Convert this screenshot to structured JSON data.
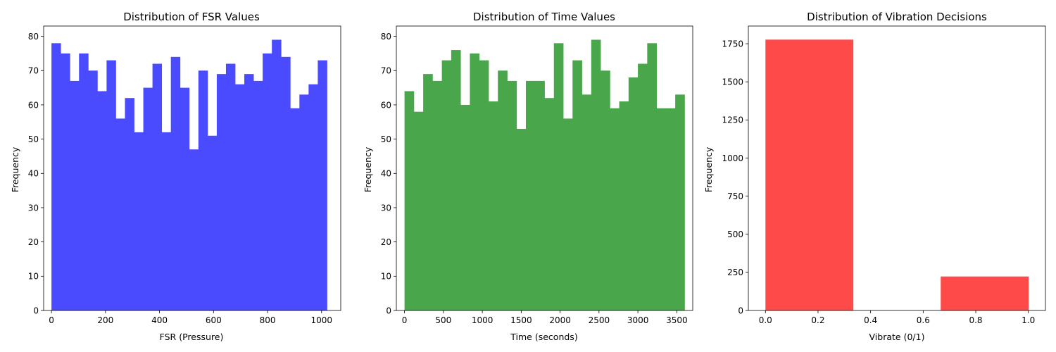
{
  "colors": {
    "blue": "#4a4aff",
    "green": "#4aa64a",
    "red": "#ff4a4a"
  },
  "chart_data": [
    {
      "type": "bar",
      "title": "Distribution of FSR Values",
      "xlabel": "FSR (Pressure)",
      "ylabel": "Frequency",
      "bin_range": [
        0,
        1020
      ],
      "values": [
        78,
        75,
        67,
        75,
        70,
        64,
        73,
        56,
        62,
        52,
        65,
        72,
        52,
        74,
        65,
        47,
        70,
        51,
        69,
        72,
        66,
        69,
        67,
        75,
        79,
        74,
        59,
        63,
        66,
        73
      ],
      "xlim": [
        -29,
        1071
      ],
      "ylim": [
        0,
        83
      ],
      "xticks": [
        0,
        200,
        400,
        600,
        800,
        1000
      ],
      "yticks": [
        0,
        10,
        20,
        30,
        40,
        50,
        60,
        70,
        80
      ],
      "color": "blue"
    },
    {
      "type": "bar",
      "title": "Distribution of Time Values",
      "xlabel": "Time (seconds)",
      "ylabel": "Frequency",
      "bin_range": [
        0,
        3600
      ],
      "values": [
        64,
        58,
        69,
        67,
        73,
        76,
        60,
        75,
        73,
        61,
        70,
        67,
        53,
        67,
        67,
        62,
        78,
        56,
        73,
        63,
        79,
        70,
        59,
        61,
        68,
        72,
        78,
        59,
        59,
        63
      ],
      "xlim": [
        -105,
        3705
      ],
      "ylim": [
        0,
        83
      ],
      "xticks": [
        0,
        500,
        1000,
        1500,
        2000,
        2500,
        3000,
        3500
      ],
      "yticks": [
        0,
        10,
        20,
        30,
        40,
        50,
        60,
        70,
        80
      ],
      "color": "green"
    },
    {
      "type": "bar",
      "title": "Distribution of Vibration Decisions",
      "xlabel": "Vibrate (0/1)",
      "ylabel": "Frequency",
      "bin_range": [
        0,
        1
      ],
      "values": [
        1777,
        0,
        223
      ],
      "xlim": [
        -0.065,
        1.065
      ],
      "ylim": [
        0,
        1866
      ],
      "xticks": [
        0.0,
        0.2,
        0.4,
        0.6,
        0.8,
        1.0
      ],
      "xtick_labels": [
        "0.0",
        "0.2",
        "0.4",
        "0.6",
        "0.8",
        "1.0"
      ],
      "yticks": [
        0,
        250,
        500,
        750,
        1000,
        1250,
        1500,
        1750
      ],
      "color": "red"
    }
  ]
}
